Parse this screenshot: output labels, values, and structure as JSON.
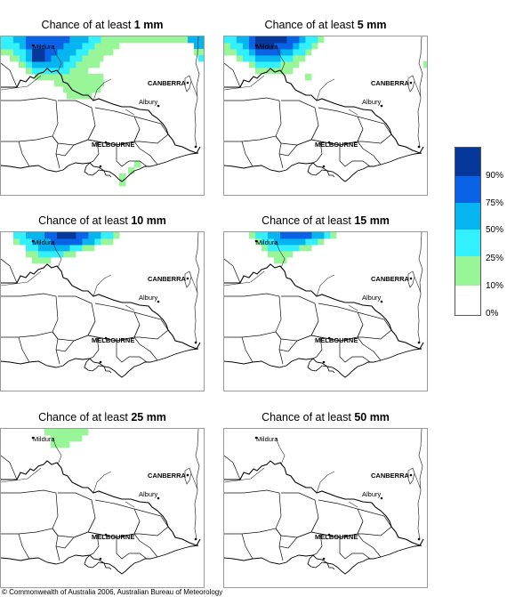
{
  "panels": [
    {
      "prefix": "Chance of at least ",
      "amount": "1 mm"
    },
    {
      "prefix": "Chance of at least ",
      "amount": "5 mm"
    },
    {
      "prefix": "Chance of at least ",
      "amount": "10 mm"
    },
    {
      "prefix": "Chance of at least ",
      "amount": "15 mm"
    },
    {
      "prefix": "Chance of at least ",
      "amount": "25 mm"
    },
    {
      "prefix": "Chance of at least ",
      "amount": "50 mm"
    }
  ],
  "places": {
    "mildura": "Mildura",
    "canberra": "CANBERRA",
    "albury": "Albury",
    "melbourne": "MELBOURNE"
  },
  "legend": {
    "labels": [
      "90%",
      "75%",
      "50%",
      "25%",
      "10%",
      "0%"
    ],
    "colors": [
      "#06379a",
      "#0a62e6",
      "#06b4f0",
      "#33f0ff",
      "#98f598",
      "#ffffff"
    ]
  },
  "copyright": "© Commonwealth of Australia 2006, Australian Bureau of Meteorology"
}
